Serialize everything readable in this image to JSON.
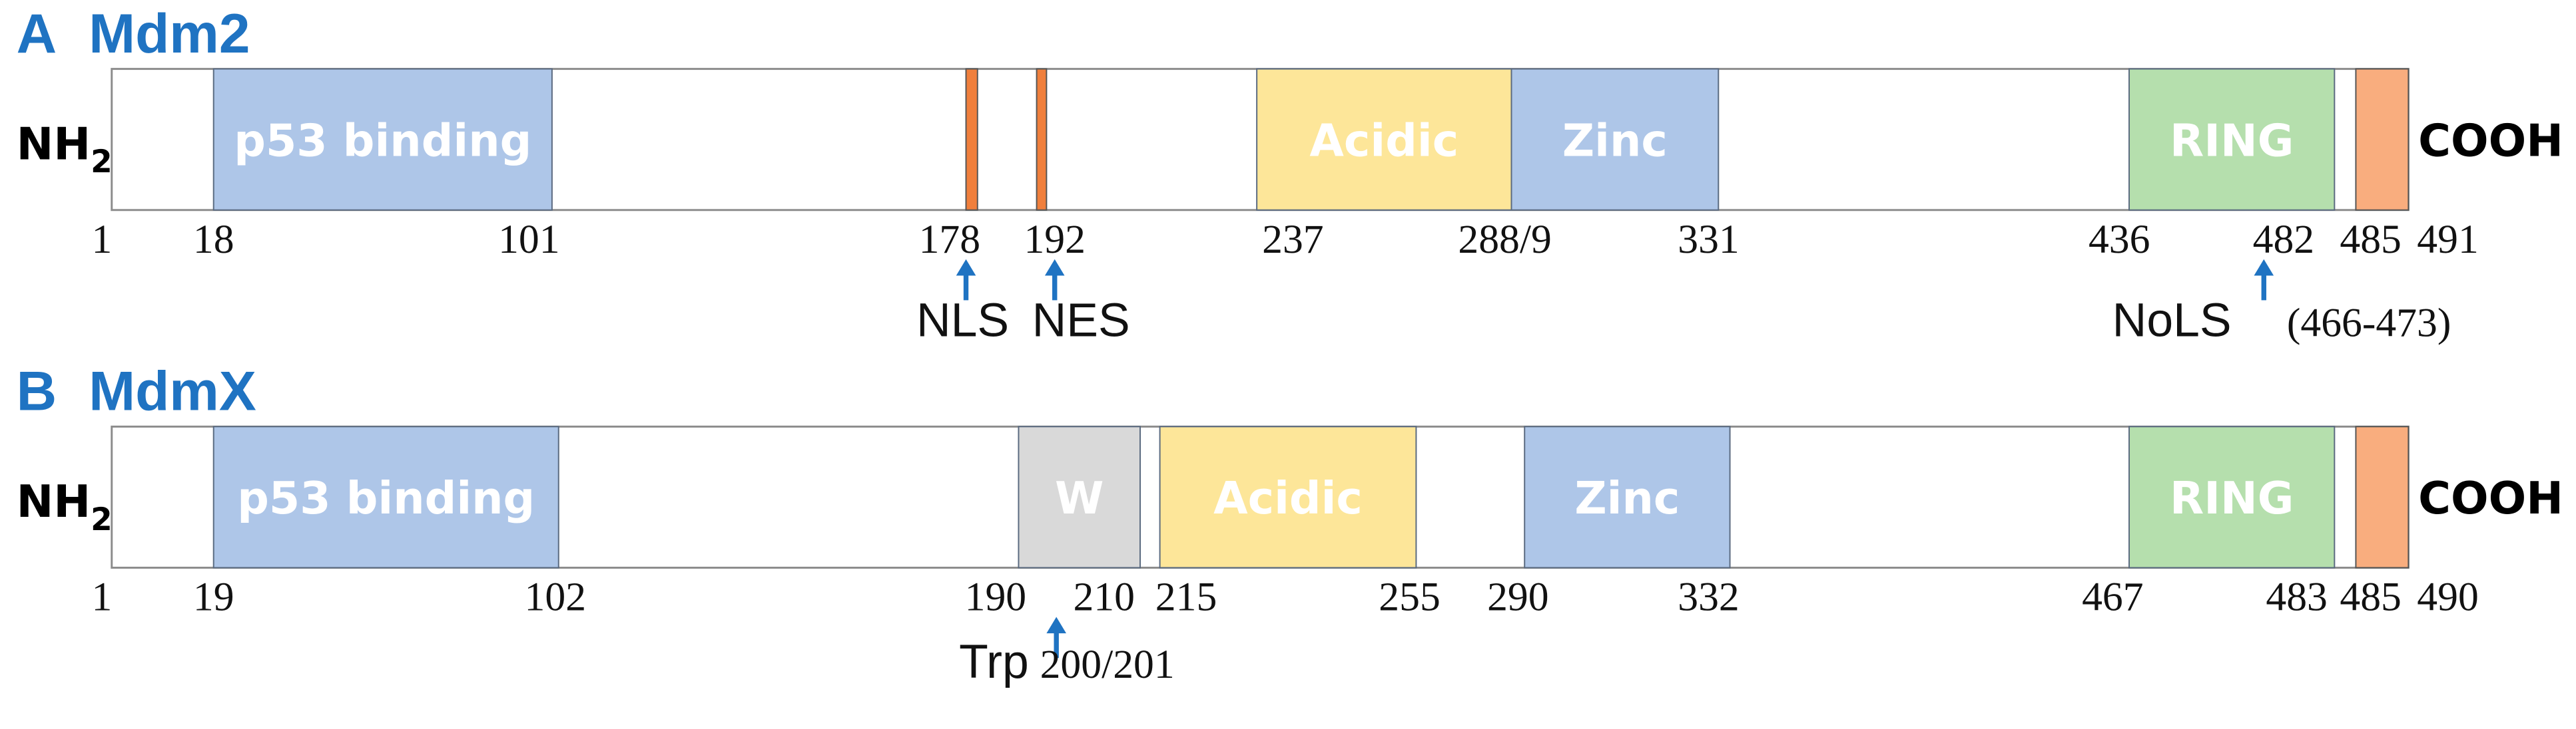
{
  "panels": [
    {
      "letter": "A",
      "title": "Mdm2",
      "n_terminus": "NH",
      "n_subscript": "2",
      "c_terminus": "COOH",
      "domains": [
        "p53 binding",
        "Acidic",
        "Zinc",
        "RING"
      ],
      "positions": [
        "1",
        "18",
        "101",
        "178",
        "192",
        "237",
        "288/9",
        "331",
        "436",
        "482",
        "485",
        "491"
      ],
      "annotations": [
        "NLS",
        "NES",
        "NoLS",
        "(466-473)"
      ]
    },
    {
      "letter": "B",
      "title": "MdmX",
      "n_terminus": "NH",
      "n_subscript": "2",
      "c_terminus": "COOH",
      "domains": [
        "p53 binding",
        "W",
        "Acidic",
        "Zinc",
        "RING"
      ],
      "positions": [
        "1",
        "19",
        "102",
        "190",
        "210",
        "215",
        "255",
        "290",
        "332",
        "467",
        "483",
        "485",
        "490"
      ],
      "annotations": [
        "Trp",
        "200/201"
      ]
    }
  ]
}
